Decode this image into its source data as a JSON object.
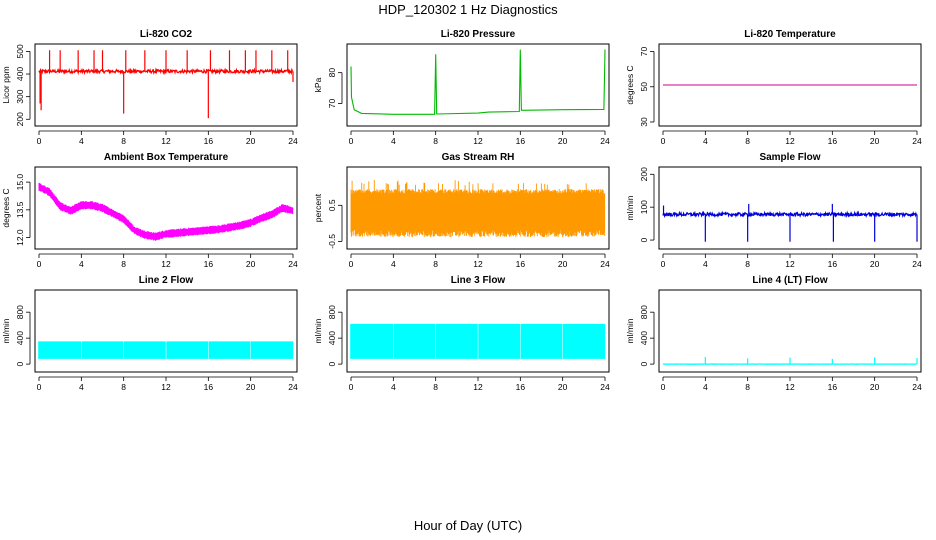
{
  "title": "HDP_120302  1 Hz Diagnostics",
  "xlabel": "Hour of Day (UTC)",
  "chart_data": [
    {
      "type": "line",
      "title": "Li-820 CO2",
      "ylabel": "Licor ppm",
      "xlim": [
        0,
        24
      ],
      "ylim": [
        188,
        515
      ],
      "xticks": [
        0,
        4,
        8,
        12,
        16,
        20,
        24
      ],
      "yticks": [
        200,
        300,
        400,
        500
      ],
      "color": "#ff0000",
      "baseline": 412,
      "noise": 7,
      "spikes": [
        [
          0.1,
          270
        ],
        [
          0.2,
          240
        ],
        [
          1.0,
          505
        ],
        [
          2.0,
          505
        ],
        [
          3.7,
          505
        ],
        [
          5.2,
          505
        ],
        [
          6.0,
          505
        ],
        [
          8.0,
          225
        ],
        [
          8.2,
          505
        ],
        [
          10.0,
          505
        ],
        [
          12.0,
          505
        ],
        [
          14.0,
          505
        ],
        [
          16.0,
          205
        ],
        [
          16.2,
          505
        ],
        [
          18.0,
          505
        ],
        [
          19.5,
          505
        ],
        [
          20.5,
          505
        ],
        [
          22.0,
          505
        ],
        [
          23.5,
          505
        ],
        [
          24.0,
          365
        ]
      ]
    },
    {
      "type": "line",
      "title": "Li-820 Pressure",
      "ylabel": "kPa",
      "xlim": [
        0,
        24
      ],
      "ylim": [
        64,
        88
      ],
      "xticks": [
        0,
        4,
        8,
        12,
        16,
        20,
        24
      ],
      "yticks": [
        70,
        80
      ],
      "color": "#00bb00",
      "points": [
        [
          0,
          82
        ],
        [
          0.05,
          72
        ],
        [
          0.3,
          68
        ],
        [
          1,
          66.8
        ],
        [
          4,
          66.5
        ],
        [
          7.9,
          66.5
        ],
        [
          8,
          86
        ],
        [
          8.1,
          66.6
        ],
        [
          12,
          66.9
        ],
        [
          13,
          67.2
        ],
        [
          15.9,
          67.4
        ],
        [
          16,
          87.5
        ],
        [
          16.1,
          67.8
        ],
        [
          20,
          68
        ],
        [
          23.9,
          68.1
        ],
        [
          24,
          87.5
        ]
      ]
    },
    {
      "type": "line",
      "title": "Li-820 Temperature",
      "ylabel": "degrees C",
      "xlim": [
        0,
        24
      ],
      "ylim": [
        30,
        72
      ],
      "xticks": [
        0,
        4,
        8,
        12,
        16,
        20,
        24
      ],
      "yticks": [
        30,
        50,
        70
      ],
      "color": "#cc0088",
      "points": [
        [
          0,
          51
        ],
        [
          24,
          51
        ]
      ]
    },
    {
      "type": "line",
      "title": "Ambient Box Temperature",
      "ylabel": "degrees C",
      "xlim": [
        0,
        24
      ],
      "ylim": [
        11.6,
        15.6
      ],
      "xticks": [
        0,
        4,
        8,
        12,
        16,
        20,
        24
      ],
      "yticks": [
        12.0,
        13.5,
        15.0
      ],
      "color": "#ff00ff",
      "band": 0.45,
      "points": [
        [
          0,
          14.75
        ],
        [
          1,
          14.45
        ],
        [
          2,
          13.7
        ],
        [
          3,
          13.45
        ],
        [
          4,
          13.75
        ],
        [
          5,
          13.75
        ],
        [
          6,
          13.6
        ],
        [
          7,
          13.3
        ],
        [
          8,
          13.0
        ],
        [
          9,
          12.4
        ],
        [
          10,
          12.15
        ],
        [
          11,
          12.05
        ],
        [
          12,
          12.2
        ],
        [
          13,
          12.25
        ],
        [
          14,
          12.3
        ],
        [
          15,
          12.35
        ],
        [
          16,
          12.4
        ],
        [
          17,
          12.45
        ],
        [
          18,
          12.55
        ],
        [
          19,
          12.65
        ],
        [
          20,
          12.8
        ],
        [
          21,
          13.05
        ],
        [
          22,
          13.25
        ],
        [
          23,
          13.6
        ],
        [
          24,
          13.45
        ]
      ]
    },
    {
      "type": "line",
      "title": "Gas Stream RH",
      "ylabel": "percent",
      "xlim": [
        0,
        24
      ],
      "ylim": [
        -0.6,
        1.45
      ],
      "xticks": [
        0,
        4,
        8,
        12,
        16,
        20,
        24
      ],
      "yticks": [
        -0.5,
        0.5
      ],
      "color": "#ff9900",
      "band_low": -0.28,
      "band_high": 0.95
    },
    {
      "type": "line",
      "title": "Sample Flow",
      "ylabel": "ml/min",
      "xlim": [
        0,
        24
      ],
      "ylim": [
        -15,
        210
      ],
      "xticks": [
        0,
        4,
        8,
        12,
        16,
        20,
        24
      ],
      "yticks": [
        0,
        100,
        200
      ],
      "color": "#0000dd",
      "baseline": 78,
      "noise": 5,
      "spikes": [
        [
          0.05,
          105
        ],
        [
          4,
          -5
        ],
        [
          8,
          -5
        ],
        [
          8.1,
          110
        ],
        [
          12,
          -5
        ],
        [
          16,
          110
        ],
        [
          16.1,
          -5
        ],
        [
          20,
          -5
        ],
        [
          24,
          -5
        ]
      ]
    },
    {
      "type": "line",
      "title": "Line 2 Flow",
      "ylabel": "ml/min",
      "xlim": [
        0,
        24
      ],
      "ylim": [
        -60,
        1080
      ],
      "xticks": [
        0,
        4,
        8,
        12,
        16,
        20,
        24
      ],
      "yticks": [
        0,
        400,
        800
      ],
      "color": "#00ffff",
      "band_low": 80,
      "band_high": 350,
      "gaps": [
        4,
        8,
        12,
        16,
        20
      ]
    },
    {
      "type": "line",
      "title": "Line 3 Flow",
      "ylabel": "ml/min",
      "xlim": [
        0,
        24
      ],
      "ylim": [
        -60,
        1080
      ],
      "xticks": [
        0,
        4,
        8,
        12,
        16,
        20,
        24
      ],
      "yticks": [
        0,
        400,
        800
      ],
      "color": "#00ffff",
      "band_low": 80,
      "band_high": 620,
      "gaps": [
        4,
        8,
        12,
        16,
        20
      ]
    },
    {
      "type": "line",
      "title": "Line 4 (LT) Flow",
      "ylabel": "ml/min",
      "xlim": [
        0,
        24
      ],
      "ylim": [
        -60,
        1080
      ],
      "xticks": [
        0,
        4,
        8,
        12,
        16,
        20,
        24
      ],
      "yticks": [
        0,
        400,
        800
      ],
      "color": "#00ffff",
      "baseline": 0,
      "noise": 2,
      "spikes": [
        [
          4,
          110
        ],
        [
          8,
          90
        ],
        [
          12,
          100
        ],
        [
          16,
          80
        ],
        [
          20,
          105
        ],
        [
          24,
          95
        ]
      ]
    }
  ]
}
